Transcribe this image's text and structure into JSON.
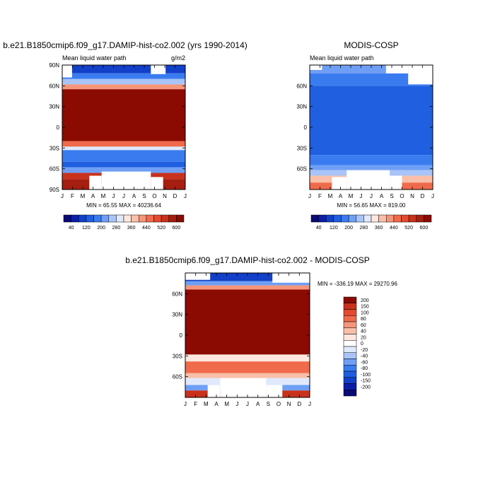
{
  "chart_data": [
    {
      "type": "heatmap",
      "title": "b.e21.B1850cmip6.f09_g17.DAMIP-hist-co2.002 (yrs 1990-2014)",
      "subtitle": "Mean liquid water path",
      "units": "g/m2",
      "stats": "MIN = 65.55 MAX = 40236.64",
      "x_tick_labels": [
        "J",
        "F",
        "M",
        "A",
        "M",
        "J",
        "J",
        "A",
        "S",
        "O",
        "N",
        "D",
        "J"
      ],
      "y_tick_labels": [
        "90N",
        "60N",
        "30N",
        "0",
        "30S",
        "60S",
        "90S"
      ],
      "ylim": [
        -90,
        90
      ],
      "colorbar_labels": [
        "40",
        "120",
        "200",
        "280",
        "360",
        "440",
        "520",
        "600"
      ],
      "colorbar_colors": [
        "#0a0a78",
        "#0b1ea8",
        "#1240c8",
        "#1f5fe0",
        "#3a7cf0",
        "#6f9ff5",
        "#a8c4f8",
        "#dfe9fb",
        "#fde7de",
        "#f9bfa8",
        "#f5957a",
        "#ef6b4c",
        "#e34a2f",
        "#c8321c",
        "#a51e10",
        "#8b0a02"
      ],
      "description_ranges": [
        {
          "lat": [
            80,
            90
          ],
          "value": 160
        },
        {
          "lat": [
            35,
            80
          ],
          "value": 650
        },
        {
          "lat": [
            -25,
            35
          ],
          "value": 650
        },
        {
          "lat": [
            -65,
            -25
          ],
          "value": 180
        },
        {
          "lat": [
            -90,
            -65
          ],
          "value": 420
        }
      ]
    },
    {
      "type": "heatmap",
      "title": "MODIS-COSP",
      "subtitle": "Mean liquid water path",
      "stats": "MIN = 56.65 MAX = 819.00",
      "x_tick_labels": [
        "J",
        "F",
        "M",
        "A",
        "M",
        "J",
        "J",
        "A",
        "S",
        "O",
        "N",
        "D",
        "J"
      ],
      "y_tick_labels": [
        "60N",
        "30N",
        "0",
        "30S",
        "60S"
      ],
      "colorbar_labels": [
        "40",
        "120",
        "200",
        "280",
        "360",
        "440",
        "520",
        "600"
      ]
    },
    {
      "type": "heatmap",
      "title": "b.e21.B1850cmip6.f09_g17.DAMIP-hist-co2.002 - MODIS-COSP",
      "stats": "MIN = -336.19 MAX = 29270.96",
      "x_tick_labels": [
        "J",
        "F",
        "M",
        "A",
        "M",
        "J",
        "J",
        "A",
        "S",
        "O",
        "N",
        "D",
        "J"
      ],
      "y_tick_labels": [
        "60N",
        "30N",
        "0",
        "30S",
        "60S"
      ],
      "colorbar_labels": [
        "200",
        "150",
        "100",
        "80",
        "60",
        "40",
        "20",
        "0",
        "-20",
        "-40",
        "-60",
        "-80",
        "-100",
        "-150",
        "-200"
      ],
      "colorbar_colors": [
        "#8b0a02",
        "#c8321c",
        "#e34a2f",
        "#ef6b4c",
        "#f5957a",
        "#f9bfa8",
        "#fde7de",
        "#ffffff",
        "#dfe9fb",
        "#a8c4f8",
        "#6f9ff5",
        "#3a7cf0",
        "#1f5fe0",
        "#1240c8",
        "#0b1ea8",
        "#0a0a78"
      ]
    }
  ]
}
